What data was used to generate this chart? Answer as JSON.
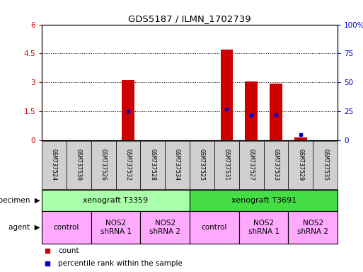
{
  "title": "GDS5187 / ILMN_1702739",
  "samples": [
    "GSM737524",
    "GSM737530",
    "GSM737526",
    "GSM737532",
    "GSM737528",
    "GSM737534",
    "GSM737525",
    "GSM737531",
    "GSM737527",
    "GSM737533",
    "GSM737529",
    "GSM737535"
  ],
  "counts": [
    0,
    0,
    0,
    3.1,
    0,
    0,
    0,
    4.7,
    3.05,
    2.95,
    0.12,
    0
  ],
  "percentile_ranks": [
    0,
    0,
    0,
    25,
    0,
    0,
    0,
    27,
    22,
    22,
    5,
    0
  ],
  "ylim_left": [
    0,
    6
  ],
  "ylim_right": [
    0,
    100
  ],
  "yticks_left": [
    0,
    1.5,
    3.0,
    4.5,
    6.0
  ],
  "ytick_labels_left": [
    "0",
    "1.5",
    "3",
    "4.5",
    "6"
  ],
  "yticks_right": [
    0,
    25,
    50,
    75,
    100
  ],
  "ytick_labels_right": [
    "0",
    "25",
    "50",
    "75",
    "100%"
  ],
  "bar_color": "#cc0000",
  "blue_color": "#0000cc",
  "specimen_row": [
    {
      "label": "xenograft T3359",
      "start": 0,
      "end": 6,
      "color": "#aaffaa"
    },
    {
      "label": "xenograft T3691",
      "start": 6,
      "end": 12,
      "color": "#44dd44"
    }
  ],
  "agent_row": [
    {
      "label": "control",
      "start": 0,
      "end": 2,
      "color": "#ffaaff"
    },
    {
      "label": "NOS2\nshRNA 1",
      "start": 2,
      "end": 4,
      "color": "#ffaaff"
    },
    {
      "label": "NOS2\nshRNA 2",
      "start": 4,
      "end": 6,
      "color": "#ffaaff"
    },
    {
      "label": "control",
      "start": 6,
      "end": 8,
      "color": "#ffaaff"
    },
    {
      "label": "NOS2\nshRNA 1",
      "start": 8,
      "end": 10,
      "color": "#ffaaff"
    },
    {
      "label": "NOS2\nshRNA 2",
      "start": 10,
      "end": 12,
      "color": "#ffaaff"
    }
  ],
  "specimen_label": "specimen",
  "agent_label": "agent",
  "legend_count_label": "count",
  "legend_percentile_label": "percentile rank within the sample",
  "bg_color": "#ffffff",
  "tick_label_area_color": "#d0d0d0"
}
